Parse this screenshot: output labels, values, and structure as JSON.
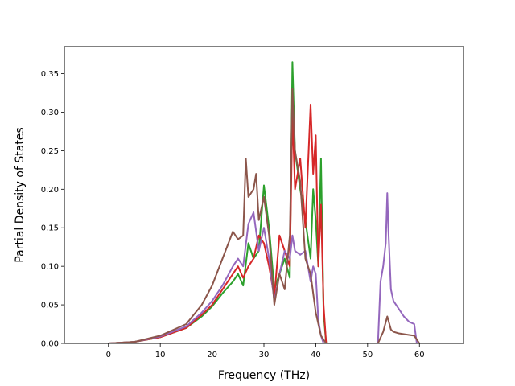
{
  "chart_data": {
    "type": "line",
    "title": "",
    "xlabel": "Frequency (THz)",
    "ylabel": "Partial Density of States",
    "xlim": [
      -8.5,
      68.5
    ],
    "ylim": [
      0,
      0.385
    ],
    "xticks": [
      0,
      10,
      20,
      30,
      40,
      50,
      60
    ],
    "yticks": [
      0.0,
      0.05,
      0.1,
      0.15,
      0.2,
      0.25,
      0.3,
      0.35
    ],
    "ytick_labels": [
      "0.00",
      "0.05",
      "0.10",
      "0.15",
      "0.20",
      "0.25",
      "0.30",
      "0.35"
    ],
    "grid": false,
    "legend": "none",
    "series": [
      {
        "color": "#2ca02c",
        "x": [
          -6,
          0,
          5,
          10,
          15,
          18,
          20,
          22,
          24,
          25,
          26,
          27,
          28,
          29,
          30,
          31,
          32,
          33,
          34,
          35,
          35.5,
          36,
          37,
          38,
          39,
          39.5,
          40,
          40.5,
          41,
          41.5,
          42,
          43,
          45,
          50,
          55,
          60,
          65
        ],
        "y": [
          0,
          0,
          0.002,
          0.008,
          0.02,
          0.035,
          0.048,
          0.065,
          0.08,
          0.09,
          0.075,
          0.13,
          0.11,
          0.12,
          0.205,
          0.15,
          0.07,
          0.09,
          0.11,
          0.085,
          0.365,
          0.25,
          0.2,
          0.16,
          0.11,
          0.2,
          0.16,
          0.1,
          0.24,
          0.04,
          0,
          0,
          0,
          0,
          0,
          0,
          0
        ]
      },
      {
        "color": "#d62728",
        "x": [
          -6,
          0,
          5,
          10,
          15,
          18,
          20,
          22,
          24,
          25,
          26,
          27,
          28,
          29,
          30,
          31,
          32,
          33,
          34,
          35,
          35.5,
          36,
          37,
          38,
          39,
          39.5,
          40,
          40.5,
          41,
          41.5,
          42,
          43,
          45,
          50,
          55,
          60,
          65
        ],
        "y": [
          0,
          0,
          0.002,
          0.008,
          0.02,
          0.037,
          0.05,
          0.07,
          0.09,
          0.1,
          0.085,
          0.1,
          0.11,
          0.14,
          0.13,
          0.1,
          0.06,
          0.14,
          0.12,
          0.1,
          0.3,
          0.2,
          0.24,
          0.15,
          0.31,
          0.22,
          0.27,
          0.1,
          0.18,
          0.05,
          0,
          0,
          0,
          0,
          0,
          0,
          0
        ]
      },
      {
        "color": "#9467bd",
        "x": [
          -6,
          0,
          5,
          10,
          15,
          18,
          20,
          22,
          24,
          25,
          26,
          27,
          28,
          29,
          30,
          31,
          32,
          33,
          34,
          35,
          35.5,
          36,
          37,
          38,
          39,
          39.5,
          40,
          40.5,
          41,
          41.5,
          42,
          43,
          45,
          50,
          52,
          52.5,
          53,
          53.5,
          53.8,
          54,
          54.5,
          55,
          56,
          57,
          58,
          59,
          59.5,
          60,
          65
        ],
        "y": [
          0,
          0,
          0.002,
          0.009,
          0.022,
          0.04,
          0.055,
          0.075,
          0.1,
          0.11,
          0.1,
          0.155,
          0.17,
          0.12,
          0.15,
          0.11,
          0.055,
          0.09,
          0.12,
          0.11,
          0.14,
          0.12,
          0.115,
          0.12,
          0.08,
          0.1,
          0.09,
          0.03,
          0.01,
          0,
          0,
          0,
          0,
          0,
          0,
          0.08,
          0.1,
          0.13,
          0.195,
          0.15,
          0.07,
          0.055,
          0.045,
          0.035,
          0.028,
          0.025,
          0,
          0,
          0
        ]
      },
      {
        "color": "#8c564b",
        "x": [
          -6,
          0,
          5,
          10,
          15,
          18,
          20,
          22,
          24,
          25,
          26,
          26.5,
          27,
          28,
          28.5,
          29,
          30,
          31,
          32,
          33,
          34,
          35,
          35.5,
          36,
          37,
          38,
          39,
          40,
          41,
          42,
          43,
          45,
          50,
          52,
          53,
          53.8,
          54.5,
          55,
          56,
          57,
          58,
          59,
          60,
          65
        ],
        "y": [
          0,
          0,
          0.002,
          0.01,
          0.025,
          0.05,
          0.075,
          0.11,
          0.145,
          0.135,
          0.14,
          0.24,
          0.19,
          0.2,
          0.22,
          0.16,
          0.19,
          0.14,
          0.05,
          0.09,
          0.07,
          0.14,
          0.33,
          0.25,
          0.21,
          0.11,
          0.09,
          0.04,
          0.01,
          0,
          0,
          0,
          0,
          0,
          0.015,
          0.035,
          0.018,
          0.015,
          0.013,
          0.012,
          0.011,
          0.01,
          0,
          0
        ]
      }
    ]
  }
}
